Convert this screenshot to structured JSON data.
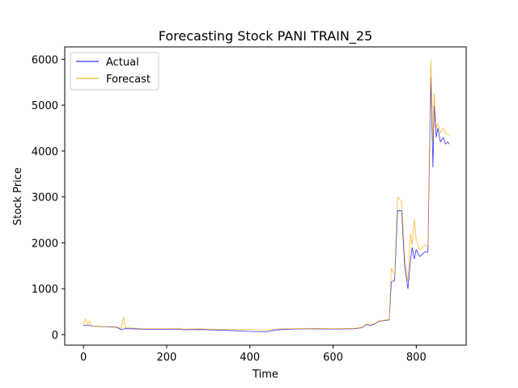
{
  "chart_data": {
    "type": "line",
    "title": "Forecasting Stock PANI TRAIN_25",
    "xlabel": "Time",
    "ylabel": "Stock Price",
    "xlim": [
      -45,
      920
    ],
    "ylim": [
      -230,
      6270
    ],
    "xticks": [
      0,
      200,
      400,
      600,
      800
    ],
    "yticks": [
      0,
      1000,
      2000,
      3000,
      4000,
      5000,
      6000
    ],
    "grid": false,
    "legend_position": "top-left",
    "series": [
      {
        "name": "Actual",
        "color": "#0000ff",
        "points": [
          [
            0,
            195
          ],
          [
            10,
            210
          ],
          [
            20,
            185
          ],
          [
            40,
            175
          ],
          [
            60,
            170
          ],
          [
            80,
            160
          ],
          [
            90,
            110
          ],
          [
            100,
            130
          ],
          [
            120,
            125
          ],
          [
            150,
            115
          ],
          [
            200,
            115
          ],
          [
            230,
            120
          ],
          [
            240,
            105
          ],
          [
            280,
            110
          ],
          [
            300,
            105
          ],
          [
            350,
            90
          ],
          [
            400,
            70
          ],
          [
            440,
            60
          ],
          [
            460,
            100
          ],
          [
            480,
            110
          ],
          [
            500,
            120
          ],
          [
            550,
            125
          ],
          [
            600,
            120
          ],
          [
            650,
            125
          ],
          [
            670,
            150
          ],
          [
            680,
            220
          ],
          [
            690,
            200
          ],
          [
            700,
            230
          ],
          [
            710,
            290
          ],
          [
            720,
            300
          ],
          [
            735,
            320
          ],
          [
            740,
            1150
          ],
          [
            748,
            1180
          ],
          [
            755,
            2700
          ],
          [
            765,
            2700
          ],
          [
            772,
            1500
          ],
          [
            780,
            1000
          ],
          [
            786,
            1600
          ],
          [
            790,
            1900
          ],
          [
            795,
            1650
          ],
          [
            800,
            1850
          ],
          [
            808,
            1700
          ],
          [
            815,
            1750
          ],
          [
            820,
            1800
          ],
          [
            828,
            1800
          ],
          [
            835,
            5600
          ],
          [
            840,
            3650
          ],
          [
            843,
            5000
          ],
          [
            848,
            4300
          ],
          [
            852,
            4500
          ],
          [
            858,
            4200
          ],
          [
            865,
            4300
          ],
          [
            870,
            4150
          ],
          [
            875,
            4200
          ],
          [
            880,
            4150
          ]
        ]
      },
      {
        "name": "Forecast",
        "color": "#ffa500",
        "points": [
          [
            0,
            220
          ],
          [
            5,
            350
          ],
          [
            10,
            200
          ],
          [
            15,
            300
          ],
          [
            20,
            190
          ],
          [
            40,
            180
          ],
          [
            60,
            175
          ],
          [
            80,
            170
          ],
          [
            90,
            130
          ],
          [
            97,
            390
          ],
          [
            100,
            150
          ],
          [
            120,
            140
          ],
          [
            150,
            130
          ],
          [
            200,
            130
          ],
          [
            230,
            135
          ],
          [
            240,
            120
          ],
          [
            280,
            125
          ],
          [
            300,
            120
          ],
          [
            350,
            110
          ],
          [
            400,
            110
          ],
          [
            440,
            95
          ],
          [
            460,
            120
          ],
          [
            480,
            130
          ],
          [
            500,
            130
          ],
          [
            550,
            135
          ],
          [
            600,
            130
          ],
          [
            650,
            135
          ],
          [
            670,
            160
          ],
          [
            680,
            230
          ],
          [
            690,
            210
          ],
          [
            700,
            240
          ],
          [
            710,
            300
          ],
          [
            720,
            310
          ],
          [
            735,
            330
          ],
          [
            740,
            1450
          ],
          [
            748,
            1300
          ],
          [
            755,
            3000
          ],
          [
            765,
            2900
          ],
          [
            772,
            1700
          ],
          [
            780,
            1150
          ],
          [
            786,
            2200
          ],
          [
            790,
            1950
          ],
          [
            795,
            2500
          ],
          [
            800,
            2050
          ],
          [
            808,
            1850
          ],
          [
            815,
            1900
          ],
          [
            820,
            1950
          ],
          [
            828,
            1950
          ],
          [
            835,
            5980
          ],
          [
            840,
            4200
          ],
          [
            843,
            5250
          ],
          [
            848,
            4500
          ],
          [
            852,
            4600
          ],
          [
            858,
            4400
          ],
          [
            865,
            4500
          ],
          [
            870,
            4400
          ],
          [
            875,
            4350
          ],
          [
            880,
            4350
          ]
        ]
      }
    ]
  }
}
